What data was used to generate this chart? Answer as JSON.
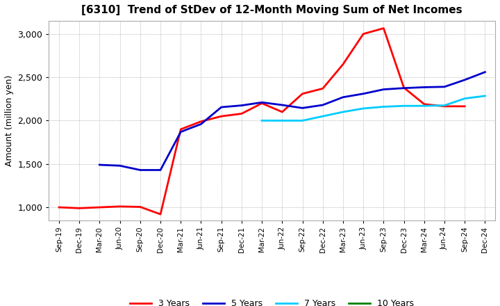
{
  "title": "[6310]  Trend of StDev of 12-Month Moving Sum of Net Incomes",
  "ylabel": "Amount (million yen)",
  "background_color": "#ffffff",
  "grid_color": "#999999",
  "ylim": [
    850,
    3150
  ],
  "yticks": [
    1000,
    1500,
    2000,
    2500,
    3000
  ],
  "x_labels": [
    "Sep-19",
    "Dec-19",
    "Mar-20",
    "Jun-20",
    "Sep-20",
    "Dec-20",
    "Mar-21",
    "Jun-21",
    "Sep-21",
    "Dec-21",
    "Mar-22",
    "Jun-22",
    "Sep-22",
    "Dec-22",
    "Mar-23",
    "Jun-23",
    "Sep-23",
    "Dec-23",
    "Mar-24",
    "Jun-24",
    "Sep-24",
    "Dec-24"
  ],
  "series": {
    "3 Years": {
      "color": "#ff0000",
      "data": [
        [
          0,
          1000
        ],
        [
          1,
          990
        ],
        [
          2,
          1000
        ],
        [
          3,
          1010
        ],
        [
          4,
          1005
        ],
        [
          5,
          920
        ],
        [
          6,
          1900
        ],
        [
          7,
          1990
        ],
        [
          8,
          2050
        ],
        [
          9,
          2080
        ],
        [
          10,
          2200
        ],
        [
          11,
          2100
        ],
        [
          12,
          2310
        ],
        [
          13,
          2370
        ],
        [
          14,
          2650
        ],
        [
          15,
          3000
        ],
        [
          16,
          3065
        ],
        [
          17,
          2380
        ],
        [
          18,
          2190
        ],
        [
          19,
          2165
        ],
        [
          20,
          2165
        ]
      ]
    },
    "5 Years": {
      "color": "#0000cc",
      "data": [
        [
          2,
          1490
        ],
        [
          3,
          1480
        ],
        [
          4,
          1430
        ],
        [
          5,
          1430
        ],
        [
          6,
          1870
        ],
        [
          7,
          1960
        ],
        [
          8,
          2155
        ],
        [
          9,
          2175
        ],
        [
          10,
          2210
        ],
        [
          11,
          2180
        ],
        [
          12,
          2145
        ],
        [
          13,
          2180
        ],
        [
          14,
          2270
        ],
        [
          15,
          2310
        ],
        [
          16,
          2360
        ],
        [
          17,
          2375
        ],
        [
          18,
          2385
        ],
        [
          19,
          2390
        ],
        [
          20,
          2470
        ],
        [
          21,
          2560
        ]
      ]
    },
    "7 Years": {
      "color": "#00ccff",
      "data": [
        [
          10,
          2000
        ],
        [
          11,
          2000
        ],
        [
          12,
          2000
        ],
        [
          13,
          2050
        ],
        [
          14,
          2100
        ],
        [
          15,
          2140
        ],
        [
          16,
          2160
        ],
        [
          17,
          2170
        ],
        [
          18,
          2170
        ],
        [
          19,
          2175
        ],
        [
          20,
          2255
        ],
        [
          21,
          2285
        ]
      ]
    },
    "10 Years": {
      "color": "#008000",
      "data": []
    }
  },
  "legend_order": [
    "3 Years",
    "5 Years",
    "7 Years",
    "10 Years"
  ]
}
